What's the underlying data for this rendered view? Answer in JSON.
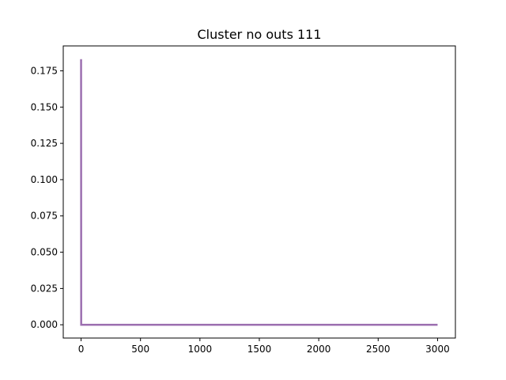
{
  "chart_data": {
    "type": "line",
    "title": "Cluster no outs 111",
    "xlabel": "",
    "ylabel": "",
    "xlim": [
      -150,
      3150
    ],
    "ylim": [
      -0.00915,
      0.19215
    ],
    "xticks": [
      0,
      500,
      1000,
      1500,
      2000,
      2500,
      3000
    ],
    "xtick_labels": [
      "0",
      "500",
      "1000",
      "1500",
      "2000",
      "2500",
      "3000"
    ],
    "yticks": [
      0.0,
      0.025,
      0.05,
      0.075,
      0.1,
      0.125,
      0.15,
      0.175
    ],
    "ytick_labels": [
      "0.000",
      "0.025",
      "0.050",
      "0.075",
      "0.100",
      "0.125",
      "0.150",
      "0.175"
    ],
    "grid": false,
    "series": [
      {
        "name": "series-1",
        "color": "#9c6fb0",
        "x": [
          0,
          1,
          3000
        ],
        "y": [
          0.183,
          0.0,
          0.0
        ]
      }
    ]
  }
}
